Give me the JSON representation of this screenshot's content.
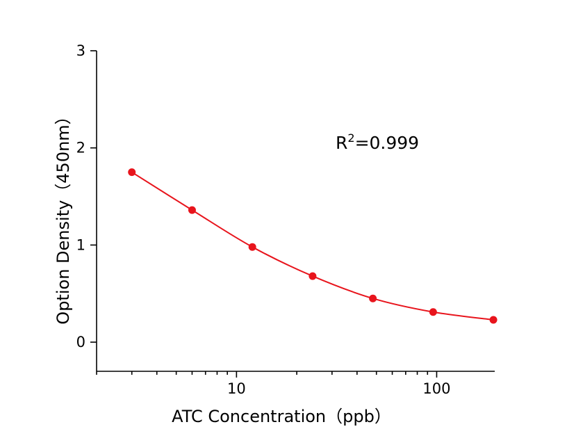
{
  "chart_data": {
    "type": "scatter",
    "title": "",
    "xlabel": "ATC Concentration（ppb）",
    "ylabel": "Option Density（450nm）",
    "x_scale": "log",
    "xlim": [
      2,
      195
    ],
    "ylim": [
      -0.3,
      3
    ],
    "x_ticks": [
      {
        "value": 10,
        "label": "10"
      },
      {
        "value": 100,
        "label": "100"
      }
    ],
    "y_ticks": [
      {
        "value": 0,
        "label": "0"
      },
      {
        "value": 1,
        "label": "1"
      },
      {
        "value": 2,
        "label": "2"
      },
      {
        "value": 3,
        "label": "3"
      }
    ],
    "grid": false,
    "series": [
      {
        "color": "#e8141c",
        "points": [
          {
            "x": 3,
            "y": 1.75
          },
          {
            "x": 6,
            "y": 1.36
          },
          {
            "x": 12,
            "y": 0.98
          },
          {
            "x": 24,
            "y": 0.68
          },
          {
            "x": 48,
            "y": 0.45
          },
          {
            "x": 96,
            "y": 0.31
          },
          {
            "x": 192,
            "y": 0.23
          }
        ],
        "fit_line": true
      }
    ],
    "annotation": {
      "base": "R",
      "superscript": "2",
      "rest": "=0.999"
    }
  }
}
